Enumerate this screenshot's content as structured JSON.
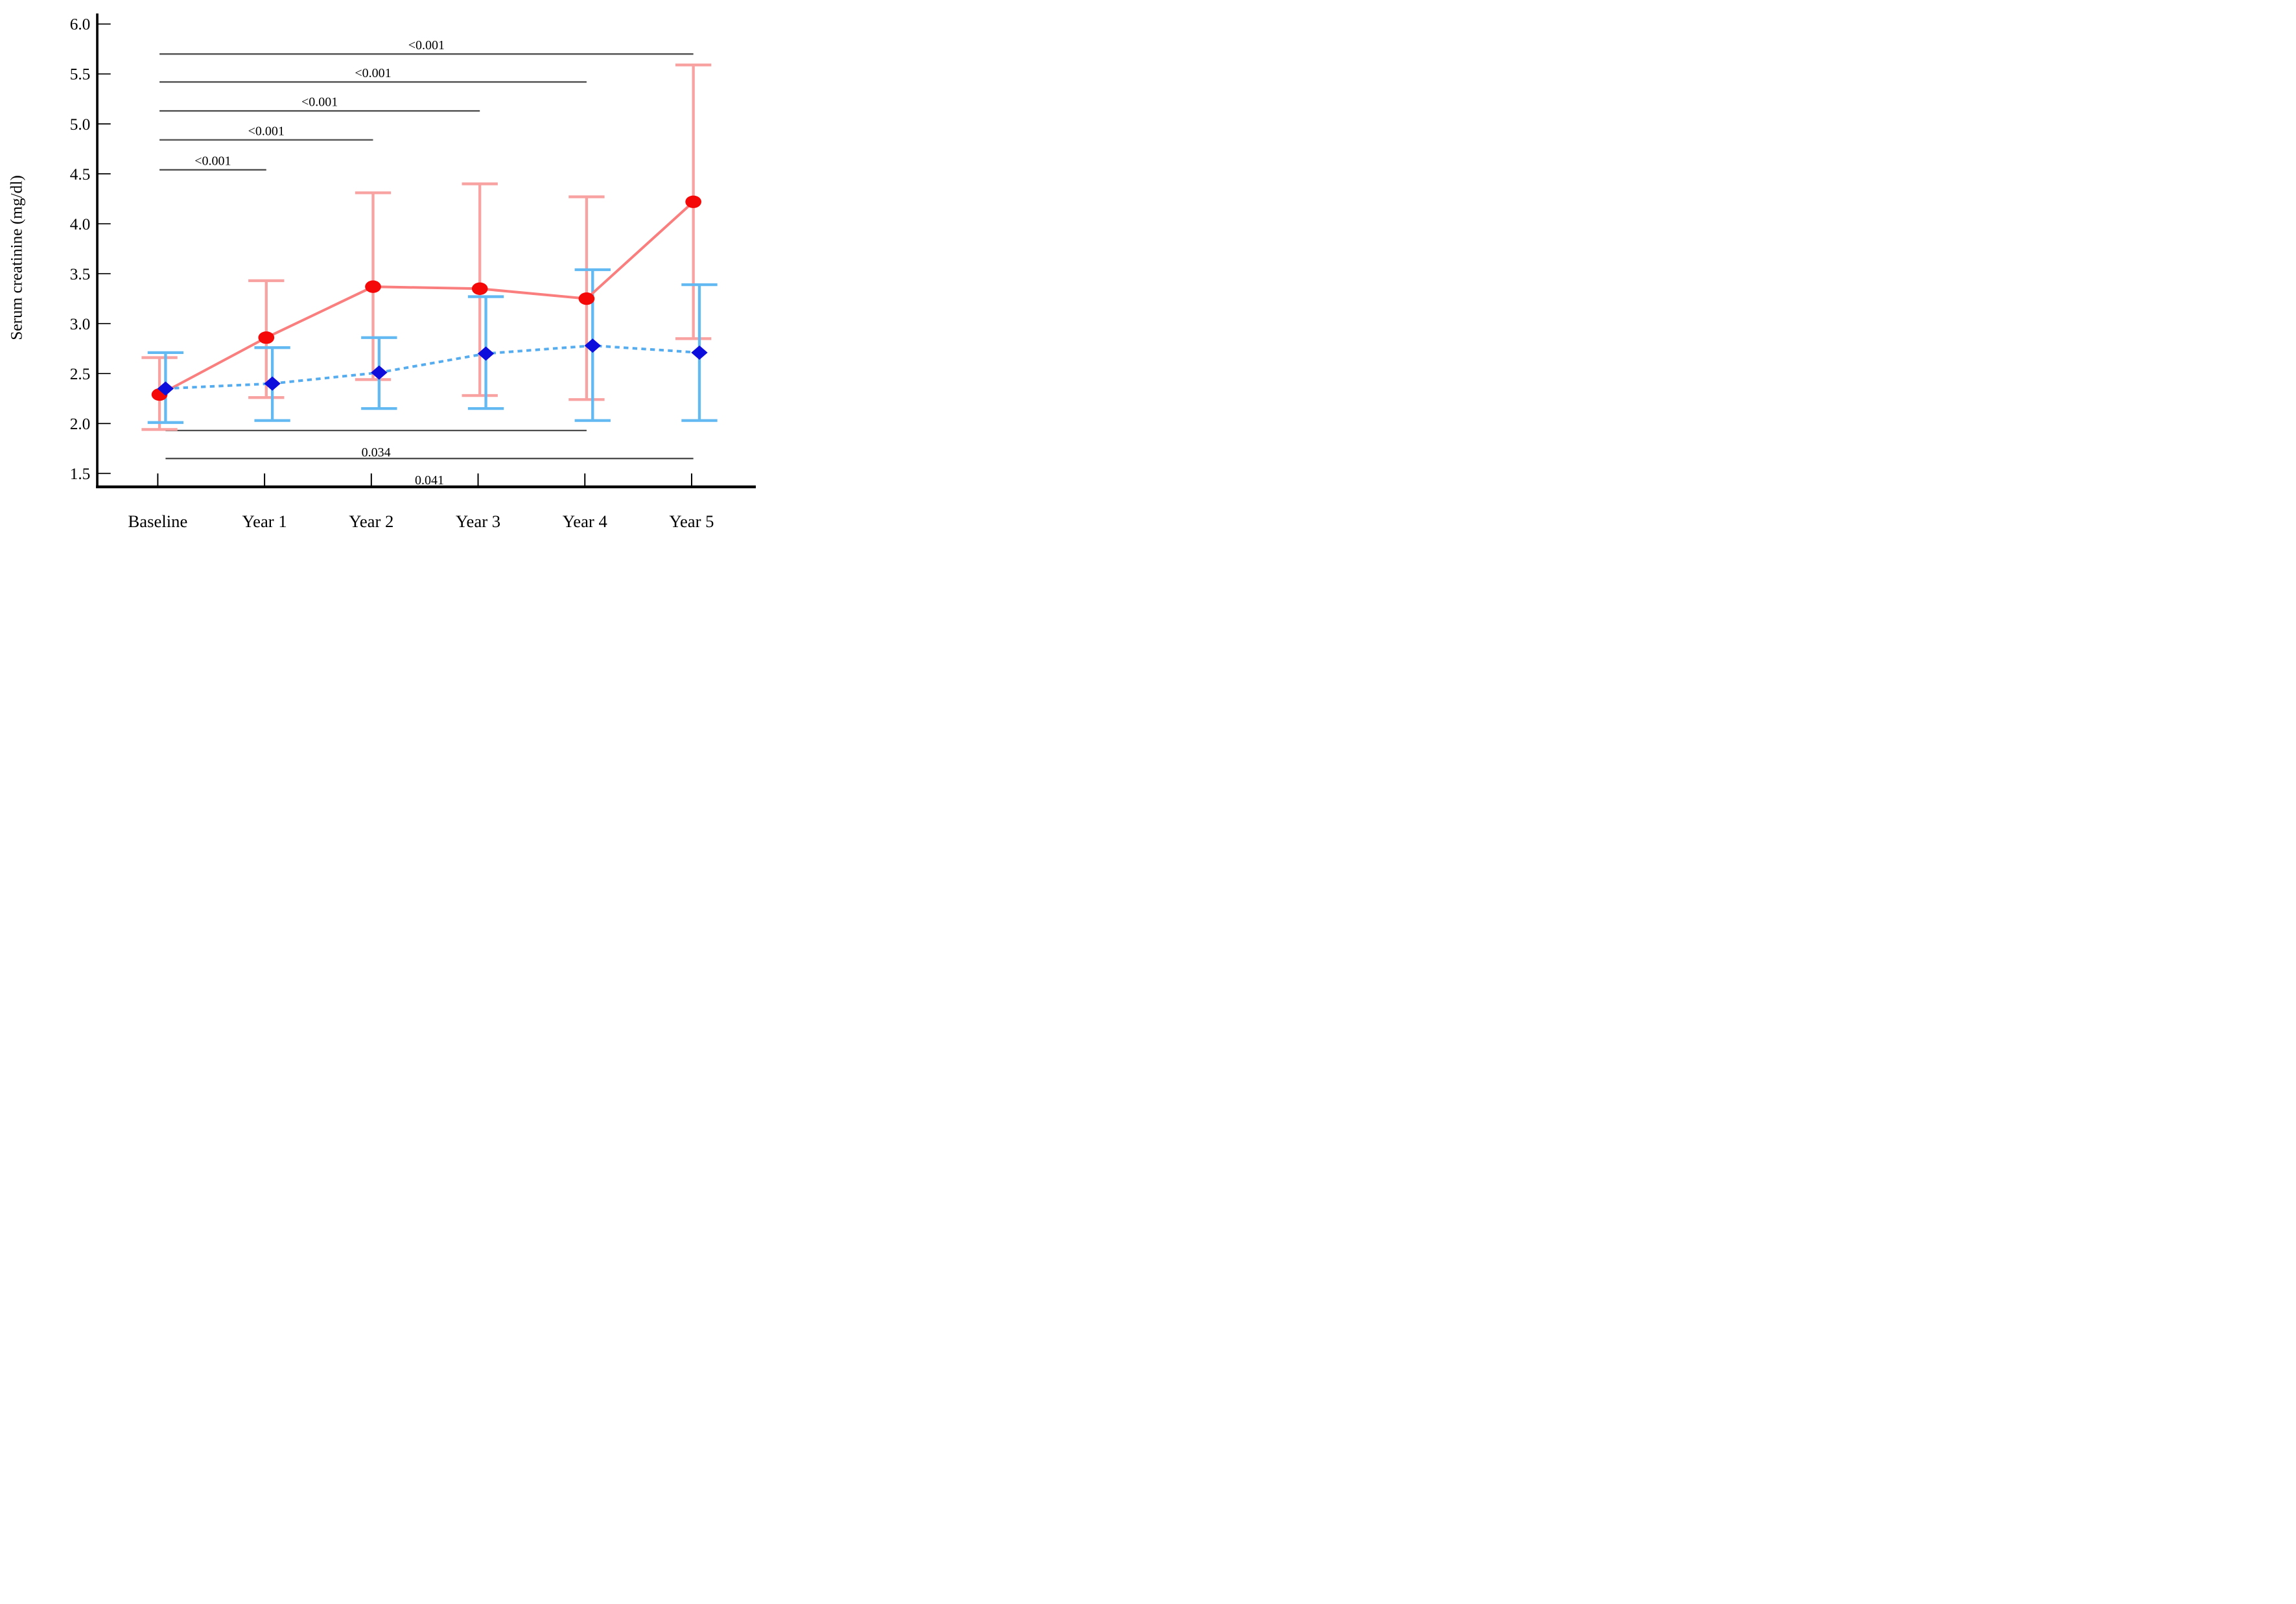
{
  "figure": {
    "background": "#ffffff",
    "description": "Line chart of serum creatinine over follow-up years with error bars and p-value significance brackets"
  },
  "chart_data": {
    "type": "line",
    "title": "",
    "xlabel": "",
    "ylabel": "Serum creatinine (mg/dl)",
    "categories": [
      "Baseline",
      "Year 1",
      "Year 2",
      "Year 3",
      "Year 4",
      "Year 5"
    ],
    "ylim": [
      1.5,
      6.0
    ],
    "yticks": [
      6.0,
      5.5,
      5.0,
      4.5,
      4.0,
      3.5,
      3.0,
      2.5,
      2.0,
      1.5
    ],
    "ytick_labels": [
      "6.0",
      "5.5",
      "5.0",
      "4.5",
      "4.0",
      "3.5",
      "3.0",
      "2.5",
      "2.0",
      "1.5"
    ],
    "grid": false,
    "legend_position": "none",
    "series": [
      {
        "name": "red-group",
        "marker": "circle",
        "line_style": "solid",
        "color_line": "#FA7E7E",
        "color_marker": "#F50808",
        "color_error": "#F9A2A2",
        "values": [
          2.29,
          2.86,
          3.37,
          3.35,
          3.25,
          4.22
        ],
        "ci_low": [
          1.94,
          2.26,
          2.44,
          2.28,
          2.24,
          2.85
        ],
        "ci_high": [
          2.66,
          3.43,
          4.31,
          4.4,
          4.27,
          5.59
        ]
      },
      {
        "name": "blue-group",
        "marker": "diamond",
        "line_style": "dashed",
        "color_line": "#55ACEF",
        "color_marker": "#0E0EDC",
        "color_error": "#63B9F2",
        "values": [
          2.35,
          2.4,
          2.51,
          2.7,
          2.78,
          2.71
        ],
        "ci_low": [
          2.01,
          2.03,
          2.15,
          2.15,
          2.03,
          2.03
        ],
        "ci_high": [
          2.71,
          2.76,
          2.86,
          3.27,
          3.54,
          3.39
        ]
      }
    ],
    "significance_brackets": {
      "color": "#4d4d4d",
      "top": [
        {
          "from": "Baseline",
          "to": "Year 1",
          "y": 4.54,
          "label": "<0.001"
        },
        {
          "from": "Baseline",
          "to": "Year 2",
          "y": 4.84,
          "label": "<0.001"
        },
        {
          "from": "Baseline",
          "to": "Year 3",
          "y": 5.13,
          "label": "<0.001"
        },
        {
          "from": "Baseline",
          "to": "Year 4",
          "y": 5.42,
          "label": "<0.001"
        },
        {
          "from": "Baseline",
          "to": "Year 5",
          "y": 5.7,
          "label": "<0.001"
        }
      ],
      "bottom": [
        {
          "from": "Baseline",
          "to": "Year 4",
          "y": 1.93,
          "label": "0.034"
        },
        {
          "from": "Baseline",
          "to": "Year 5",
          "y": 1.65,
          "label": "0.041"
        }
      ]
    }
  }
}
